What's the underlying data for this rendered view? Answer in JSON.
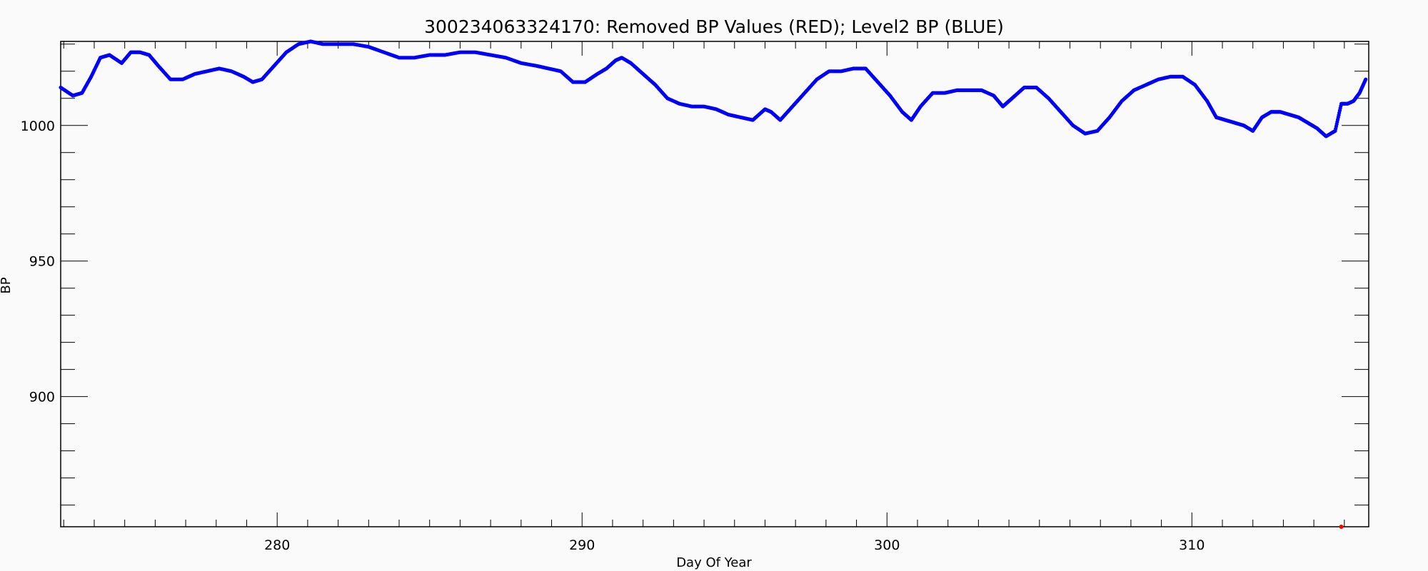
{
  "chart_data": {
    "type": "scatter",
    "title": "300234063324170: Removed BP Values (RED); Level2 BP (BLUE)",
    "xlabel": "Day Of Year",
    "ylabel": "BP",
    "xlim": [
      272.9,
      315.8
    ],
    "ylim": [
      852,
      1031
    ],
    "x_ticks": [
      280,
      290,
      300,
      310
    ],
    "y_ticks": [
      900,
      950,
      1000
    ],
    "grid": false,
    "colors": {
      "level2": "#0000ff",
      "removed": "#ff0000"
    },
    "series": [
      {
        "color": "#0000ff",
        "x": [
          272.9,
          273.3,
          273.6,
          273.9,
          274.2,
          274.5,
          274.9,
          275.2,
          275.5,
          275.8,
          276.1,
          276.5,
          276.9,
          277.3,
          277.7,
          278.1,
          278.5,
          278.9,
          279.2,
          279.5,
          279.9,
          280.3,
          280.7,
          281.1,
          281.5,
          282.0,
          282.5,
          283.0,
          283.5,
          284.0,
          284.5,
          285.0,
          285.5,
          286.0,
          286.5,
          287.0,
          287.5,
          288.0,
          288.5,
          288.9,
          289.3,
          289.7,
          290.1,
          290.5,
          290.8,
          291.1,
          291.3,
          291.6,
          292.0,
          292.4,
          292.8,
          293.2,
          293.6,
          294.0,
          294.4,
          294.8,
          295.2,
          295.6,
          296.0,
          296.2,
          296.5,
          296.9,
          297.3,
          297.7,
          298.1,
          298.5,
          298.9,
          299.3,
          299.7,
          300.1,
          300.5,
          300.8,
          301.1,
          301.5,
          301.9,
          302.3,
          302.7,
          303.1,
          303.5,
          303.8,
          304.1,
          304.5,
          304.9,
          305.3,
          305.7,
          306.1,
          306.5,
          306.9,
          307.3,
          307.7,
          308.1,
          308.5,
          308.9,
          309.3,
          309.7,
          310.1,
          310.5,
          310.8,
          311.1,
          311.4,
          311.7,
          312.0,
          312.3,
          312.6,
          312.9,
          313.2,
          313.5,
          313.8,
          314.1,
          314.4,
          314.7,
          314.9,
          315.1,
          315.3,
          315.5,
          315.7
        ],
        "y": [
          1014,
          1011,
          1012,
          1018,
          1025,
          1026,
          1023,
          1027,
          1027,
          1026,
          1022,
          1017,
          1017,
          1019,
          1020,
          1021,
          1020,
          1018,
          1016,
          1017,
          1022,
          1027,
          1030,
          1031,
          1030,
          1030,
          1030,
          1029,
          1027,
          1025,
          1025,
          1026,
          1026,
          1027,
          1027,
          1026,
          1025,
          1023,
          1022,
          1021,
          1020,
          1016,
          1016,
          1019,
          1021,
          1024,
          1025,
          1023,
          1019,
          1015,
          1010,
          1008,
          1007,
          1007,
          1006,
          1004,
          1003,
          1002,
          1006,
          1005,
          1002,
          1007,
          1012,
          1017,
          1020,
          1020,
          1021,
          1021,
          1016,
          1011,
          1005,
          1002,
          1007,
          1012,
          1012,
          1013,
          1013,
          1013,
          1011,
          1007,
          1010,
          1014,
          1014,
          1010,
          1005,
          1000,
          997,
          998,
          1003,
          1009,
          1013,
          1015,
          1017,
          1018,
          1018,
          1015,
          1009,
          1003,
          1002,
          1001,
          1000,
          998,
          1003,
          1005,
          1005,
          1004,
          1003,
          1001,
          999,
          996,
          998,
          1008,
          1008,
          1009,
          1012,
          1017
        ]
      },
      {
        "color": "#ff0000",
        "x": [
          314.9
        ],
        "y": [
          852
        ]
      }
    ]
  }
}
